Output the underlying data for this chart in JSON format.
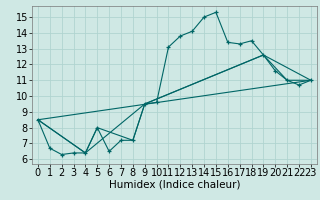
{
  "title": "",
  "xlabel": "Humidex (Indice chaleur)",
  "ylabel": "",
  "xlim": [
    -0.5,
    23.5
  ],
  "ylim": [
    5.7,
    15.7
  ],
  "xticks": [
    0,
    1,
    2,
    3,
    4,
    5,
    6,
    7,
    8,
    9,
    10,
    11,
    12,
    13,
    14,
    15,
    16,
    17,
    18,
    19,
    20,
    21,
    22,
    23
  ],
  "yticks": [
    6,
    7,
    8,
    9,
    10,
    11,
    12,
    13,
    14,
    15
  ],
  "bg_color": "#cfe8e4",
  "line_color": "#006666",
  "series": [
    {
      "x": [
        0,
        1,
        2,
        3,
        4,
        5,
        6,
        7,
        8,
        9,
        10,
        11,
        12,
        13,
        14,
        15,
        16,
        17,
        18,
        19,
        20,
        21,
        22,
        23
      ],
      "y": [
        8.5,
        6.7,
        6.3,
        6.4,
        6.4,
        8.0,
        6.5,
        7.2,
        7.2,
        9.5,
        9.6,
        13.1,
        13.8,
        14.1,
        15.0,
        15.3,
        13.4,
        13.3,
        13.5,
        12.6,
        11.6,
        11.0,
        10.7,
        11.0
      ],
      "marker": "+"
    },
    {
      "x": [
        0,
        4,
        5,
        8,
        9,
        19,
        21,
        23
      ],
      "y": [
        8.5,
        6.4,
        8.0,
        7.2,
        9.5,
        12.6,
        11.0,
        11.0
      ],
      "marker": null
    },
    {
      "x": [
        0,
        4,
        9,
        19,
        23
      ],
      "y": [
        8.5,
        6.4,
        9.5,
        12.6,
        11.0
      ],
      "marker": null
    },
    {
      "x": [
        0,
        23
      ],
      "y": [
        8.5,
        11.0
      ],
      "marker": null
    }
  ],
  "grid_color": "#b0d4d0",
  "font_size": 7,
  "xlabel_fontsize": 7.5
}
